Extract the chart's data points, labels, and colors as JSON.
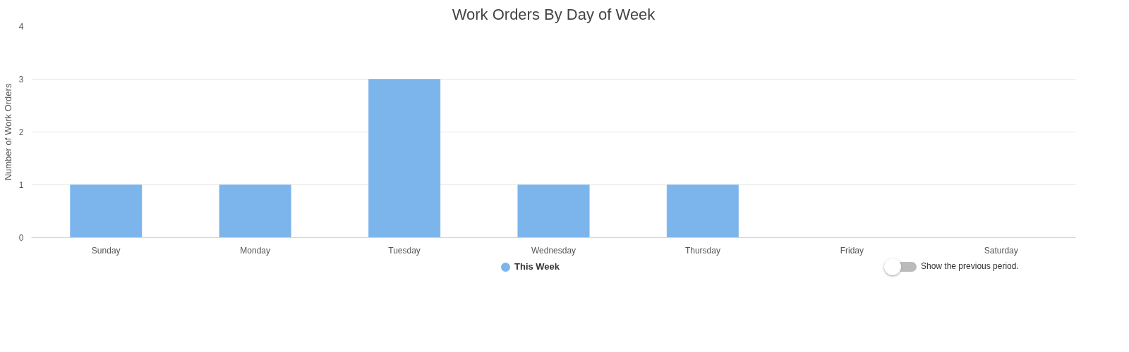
{
  "chart_data": {
    "type": "bar",
    "title": "Work Orders By Day of Week",
    "ylabel": "Number of Work Orders",
    "categories": [
      "Sunday",
      "Monday",
      "Tuesday",
      "Wednesday",
      "Thursday",
      "Friday",
      "Saturday"
    ],
    "series": [
      {
        "name": "This Week",
        "color": "#7cb5ec",
        "values": [
          1,
          1,
          3,
          1,
          1,
          0,
          0
        ]
      }
    ],
    "ylim": [
      0,
      4
    ],
    "yticks": [
      0,
      1,
      2,
      3,
      4
    ],
    "grid": "y",
    "legend": "bottom",
    "annotations": [
      "Show the previous period."
    ]
  }
}
